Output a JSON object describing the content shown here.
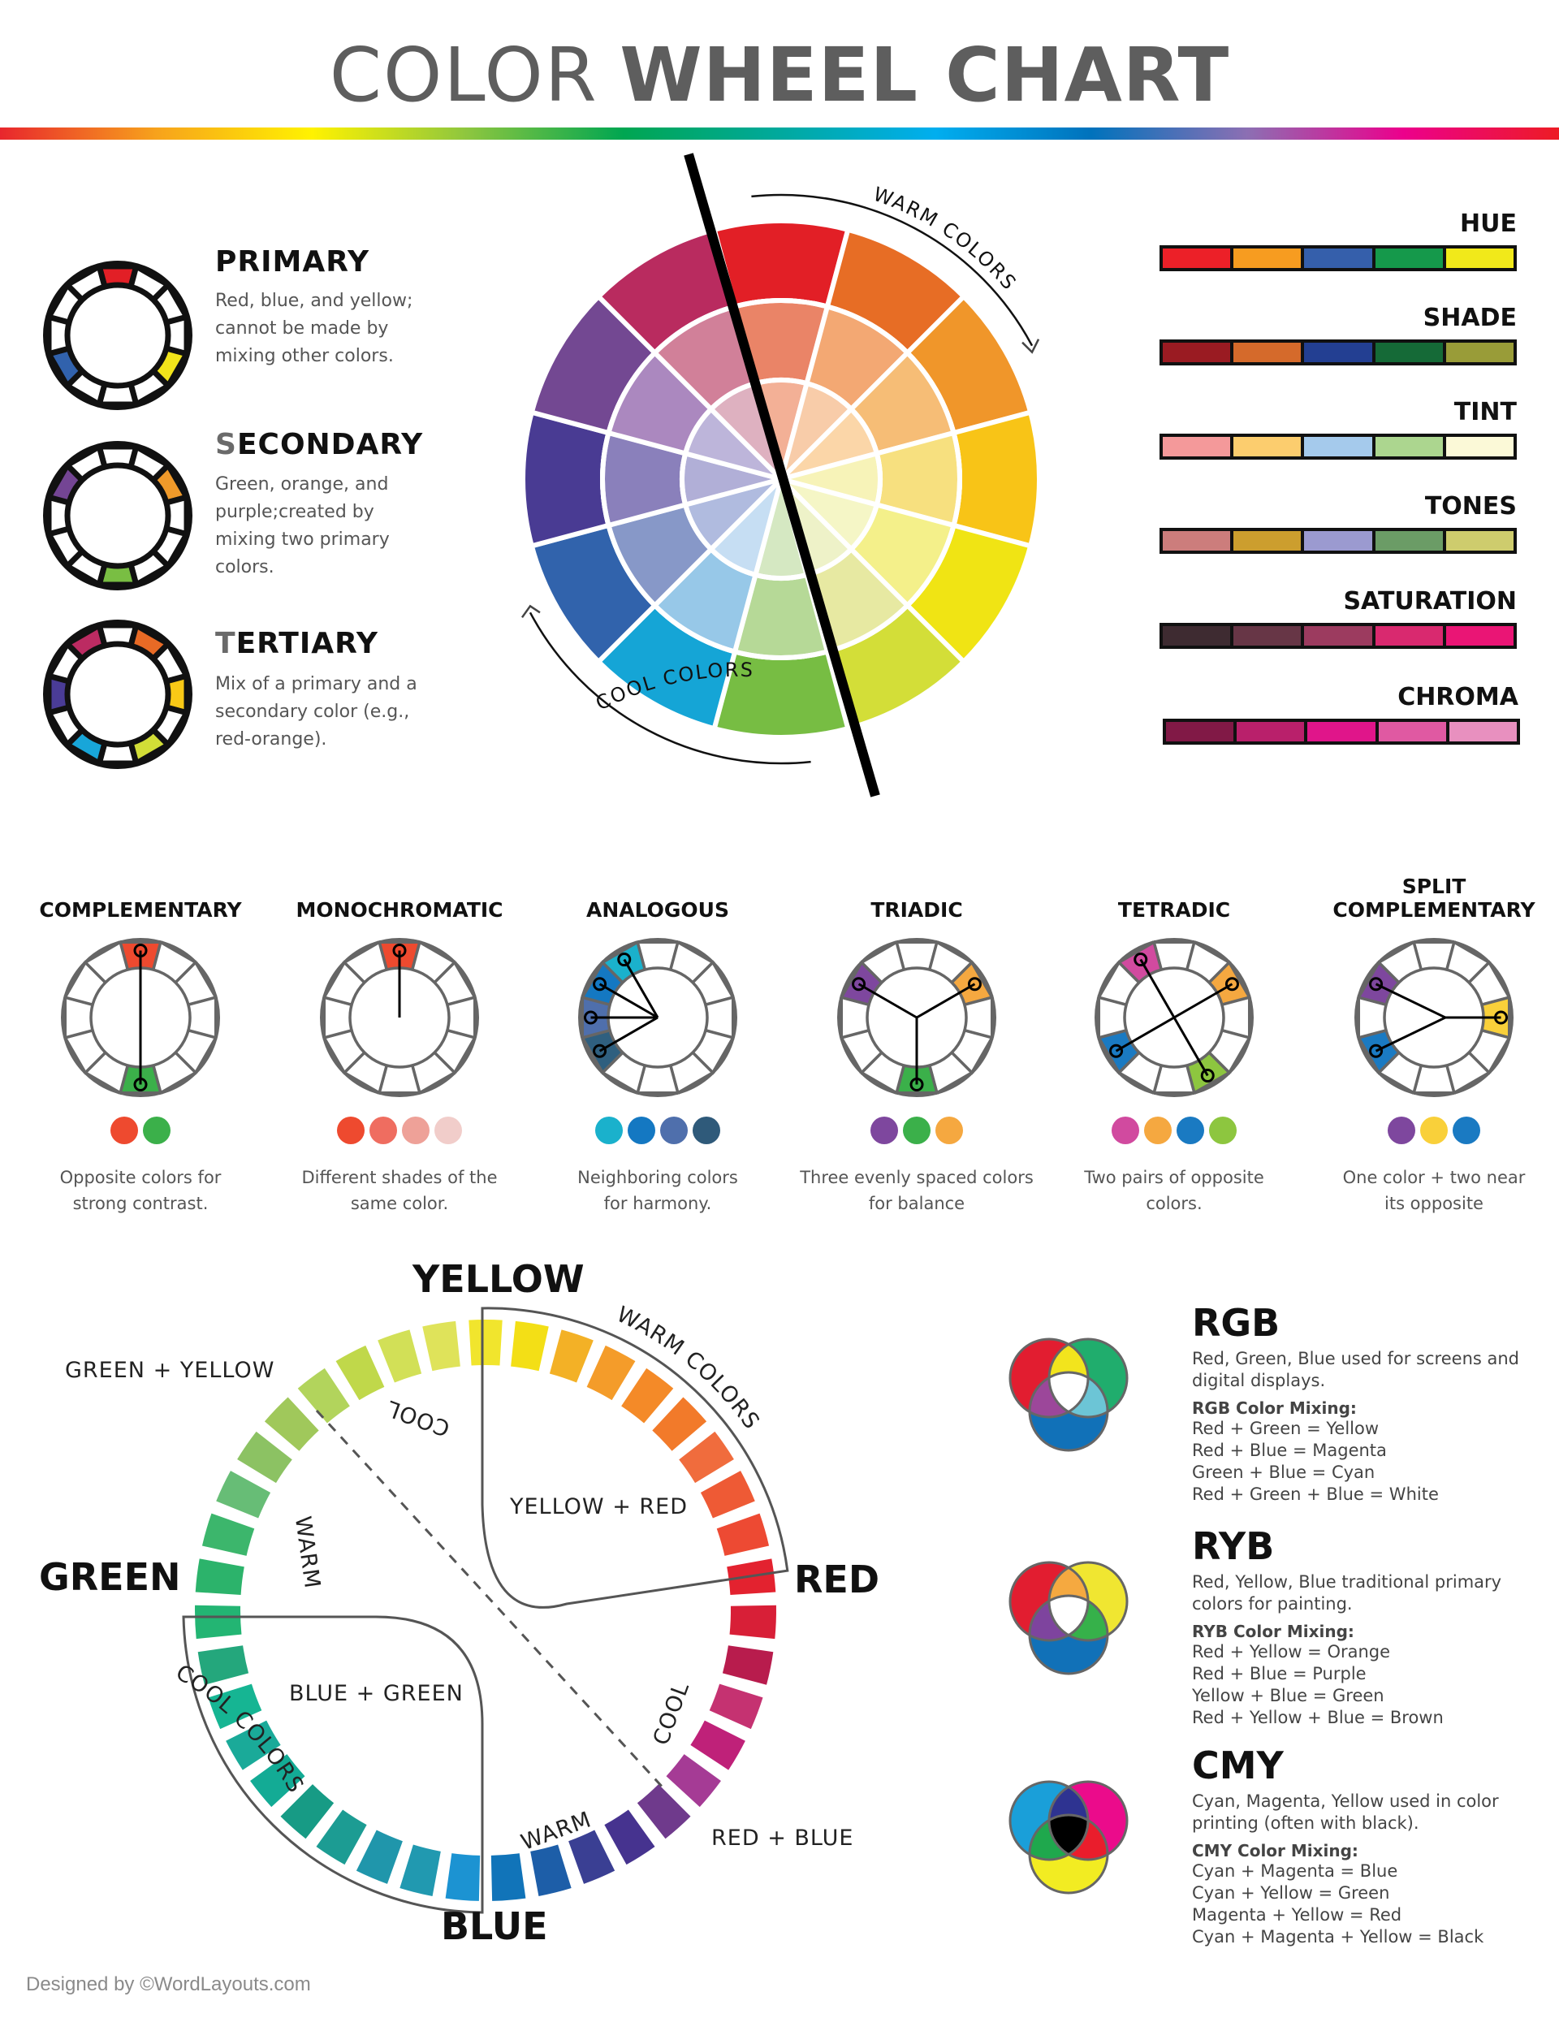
{
  "title": {
    "light": "COLOR",
    "bold": "WHEEL CHART",
    "color": "#5e5e5e"
  },
  "rainbow_bar": {
    "stops": [
      "#e8262d",
      "#f7a21c",
      "#fff200",
      "#8dc63f",
      "#00a651",
      "#00a99d",
      "#00aeef",
      "#0072bc",
      "#8c6fb3",
      "#ec008c",
      "#ed1c24"
    ]
  },
  "categories": [
    {
      "title_first": "P",
      "title_rest": "RIMARY",
      "first_gray": false,
      "desc": "Red, blue, and yellow; cannot be made by mixing other colors.",
      "segments": {
        "0": "#e21f26",
        "4": "#f2e41a",
        "8": "#3162ad"
      }
    },
    {
      "title_first": "S",
      "title_rest": "ECONDARY",
      "first_gray": true,
      "desc": "Green, orange, and purple;created by mixing two primary colors.",
      "segments": {
        "2": "#f09a2a",
        "6": "#79be43",
        "10": "#744594"
      }
    },
    {
      "title_first": "T",
      "title_rest": "ERTIARY",
      "first_gray": true,
      "desc": "Mix of a primary and a secondary color (e.g., red-orange).",
      "segments": {
        "1": "#e86a25",
        "3": "#f9c916",
        "5": "#d2de37",
        "7": "#18a6d9",
        "9": "#4a3c97",
        "11": "#bc2b62"
      }
    }
  ],
  "main_wheel": {
    "outer": [
      "#e21f26",
      "#e76d25",
      "#f0962a",
      "#f8c417",
      "#f0e414",
      "#d3de38",
      "#77bd43",
      "#15a5d6",
      "#3163ac",
      "#493b93",
      "#734892",
      "#b92b5f"
    ],
    "middle": [
      "#ea8467",
      "#f3a873",
      "#f6bd76",
      "#f7e07f",
      "#f4f08a",
      "#e7e9a2",
      "#b6d997",
      "#97c8e8",
      "#8798c8",
      "#8a80bb",
      "#ab88bf",
      "#d18099"
    ],
    "inner": [
      "#f3b096",
      "#f8cca9",
      "#fbd6a8",
      "#f7f3b8",
      "#f5f6c6",
      "#eef2c8",
      "#d5e8c2",
      "#c6def3",
      "#b0bbdf",
      "#b1afd7",
      "#bdb5da",
      "#deb1c0"
    ],
    "warm_label": "WARM COLORS",
    "cool_label": "COOL COLORS"
  },
  "swatches": [
    {
      "label": "HUE",
      "colors": [
        "#ec2028",
        "#f79c20",
        "#355fab",
        "#15994b",
        "#f1e91a"
      ]
    },
    {
      "label": "SHADE",
      "colors": [
        "#9a1b22",
        "#d56a2b",
        "#233f92",
        "#156a37",
        "#999c38"
      ]
    },
    {
      "label": "TINT",
      "colors": [
        "#f4999a",
        "#fccd6e",
        "#a5caec",
        "#acd68f",
        "#fbf9d7"
      ]
    },
    {
      "label": "TONES",
      "colors": [
        "#cc7d7c",
        "#cc9e2e",
        "#9b9ad0",
        "#6b9c66",
        "#cecc6d"
      ]
    },
    {
      "label": "SATURATION",
      "colors": [
        "#3e2b31",
        "#673646",
        "#9c3b5f",
        "#d9296f",
        "#ea1575"
      ]
    },
    {
      "label": "CHROMA",
      "colors": [
        "#811946",
        "#b9206b",
        "#e0158a",
        "#e059a2",
        "#e890bf"
      ]
    }
  ],
  "harmonies": [
    {
      "title": "COMPLEMENTARY",
      "title_line2": "",
      "segments": {
        "0": "#ee4a2f",
        "6": "#3bb04a"
      },
      "lines": [
        [
          0,
          6
        ]
      ],
      "hub": false,
      "dots": [
        "#ee4a2f",
        "#3bb04a"
      ],
      "desc1": "Opposite colors for",
      "desc2": "strong contrast."
    },
    {
      "title": "MONOCHROMATIC",
      "title_line2": "",
      "segments": {
        "0": "#ee4a2f"
      },
      "lines": [
        [
          0,
          "c"
        ]
      ],
      "hub": false,
      "dots": [
        "#ee4a2f",
        "#ef6d60",
        "#eea198",
        "#f1cdca"
      ],
      "desc1": "Different shades of the",
      "desc2": "same color."
    },
    {
      "title": "ANALOGOUS",
      "title_line2": "",
      "segments": {
        "8": "#2f5f7f",
        "9": "#4f6fac",
        "10": "#1478c2",
        "11": "#1ab1cc"
      },
      "seg_offset": "analog",
      "lines": [],
      "hub": true,
      "dots": [
        "#1ab1cc",
        "#1478c2",
        "#4f6fac",
        "#2f5a7a"
      ],
      "desc1": "Neighboring colors",
      "desc2": "for harmony."
    },
    {
      "title": "TRIADIC",
      "title_line2": "",
      "segments": {
        "2": "#f5a840",
        "6": "#3bb04a",
        "10": "#7e479e"
      },
      "lines": [],
      "hub": true,
      "dots": [
        "#7e479e",
        "#3bb04a",
        "#f5a840"
      ],
      "desc1": "Three evenly spaced colors",
      "desc2": "for balance"
    },
    {
      "title": "TETRADIC",
      "title_line2": "",
      "segments": {
        "11": "#d14a9f",
        "2": "#f5a840",
        "5": "#8dc63f",
        "8": "#1a7ac2"
      },
      "lines": [
        [
          11,
          5
        ],
        [
          2,
          8
        ]
      ],
      "hub": false,
      "dots": [
        "#d14a9f",
        "#f5a840",
        "#1a7ac2",
        "#8dc63f"
      ],
      "desc1": "Two pairs of opposite",
      "desc2": "colors."
    },
    {
      "title": "SPLIT",
      "title_line2": "COMPLEMENTARY",
      "segments": {
        "3": "#f9d03a",
        "8": "#1a7ac2",
        "10": "#7e479e"
      },
      "lines": [],
      "hub": true,
      "hub_off": 14,
      "dots": [
        "#7e479e",
        "#f9d03a",
        "#1a7ac2"
      ],
      "desc1": "One color + two near",
      "desc2": "its opposite"
    }
  ],
  "bottom_wheel": {
    "labels": {
      "yellow": "YELLOW",
      "red": "RED",
      "blue": "BLUE",
      "green": "GREEN",
      "green_yellow": "GREEN + YELLOW",
      "red_blue": "RED + BLUE",
      "yellow_red": "YELLOW + RED",
      "blue_green": "BLUE + GREEN",
      "warm_colors": "WARM COLORS",
      "cool_colors": "COOL COLORS",
      "cool": "COOL",
      "warm": "WARM"
    },
    "segments": [
      "#f1e52d",
      "#f3df16",
      "#f3b126",
      "#f49c2a",
      "#f48a28",
      "#f27a2a",
      "#f06c3d",
      "#ee5a35",
      "#ed4a33",
      "#e3222f",
      "#d81f37",
      "#b81c4d",
      "#c53271",
      "#bf2179",
      "#a53b95",
      "#6f3a8c",
      "#46338f",
      "#3a3f93",
      "#1d5ea8",
      "#1174b9",
      "#1c93d2",
      "#2199b0",
      "#2096ab",
      "#1c9c93",
      "#179b85",
      "#13ab95",
      "#1aaa99",
      "#16b593",
      "#24a77c",
      "#23b573",
      "#2cb36b",
      "#3cb66c",
      "#67bd76",
      "#8cc263",
      "#a0c85b",
      "#b2d45c",
      "#c0d84a",
      "#d2e057",
      "#dfe35a"
    ]
  },
  "venns": [
    {
      "title": "RGB",
      "desc": "Red, Green, Blue used for screens and digital displays.",
      "mix_title": "RGB Color Mixing:",
      "mixes": [
        "Red + Green = Yellow",
        "Red + Blue = Magenta",
        "Green + Blue = Cyan",
        "Red + Green + Blue = White"
      ],
      "colors": {
        "a": "#e21d30",
        "b": "#20ad6d",
        "c": "#1171b8",
        "ab": "#f2e41d",
        "ac": "#9c479a",
        "bc": "#6cc5d6",
        "abc": "#ffffff"
      }
    },
    {
      "title": "RYB",
      "desc": "Red, Yellow, Blue traditional primary colors for painting.",
      "mix_title": "RYB Color Mixing:",
      "mixes": [
        "Red + Yellow = Orange",
        "Red + Blue = Purple",
        "Yellow + Blue = Green",
        "Red + Yellow + Blue = Brown"
      ],
      "colors": {
        "a": "#e21d30",
        "b": "#f0e631",
        "c": "#1171b8",
        "ab": "#f5a940",
        "ac": "#7e449e",
        "bc": "#36b14a",
        "abc": "#ffffff"
      }
    },
    {
      "title": "CMY",
      "desc": "Cyan, Magenta, Yellow used in color printing (often with black).",
      "mix_title": "CMY Color Mixing:",
      "mixes": [
        "Cyan + Magenta = Blue",
        "Cyan + Yellow = Green",
        "Magenta + Yellow = Red",
        "Cyan + Magenta + Yellow = Black"
      ],
      "colors": {
        "a": "#1a9fd9",
        "b": "#eb0b8b",
        "c": "#f2ec22",
        "ab": "#2e3391",
        "ac": "#1fa84d",
        "bc": "#ea1d2c",
        "abc": "#000000"
      }
    }
  ],
  "footer": "Designed by ©WordLayouts.com"
}
